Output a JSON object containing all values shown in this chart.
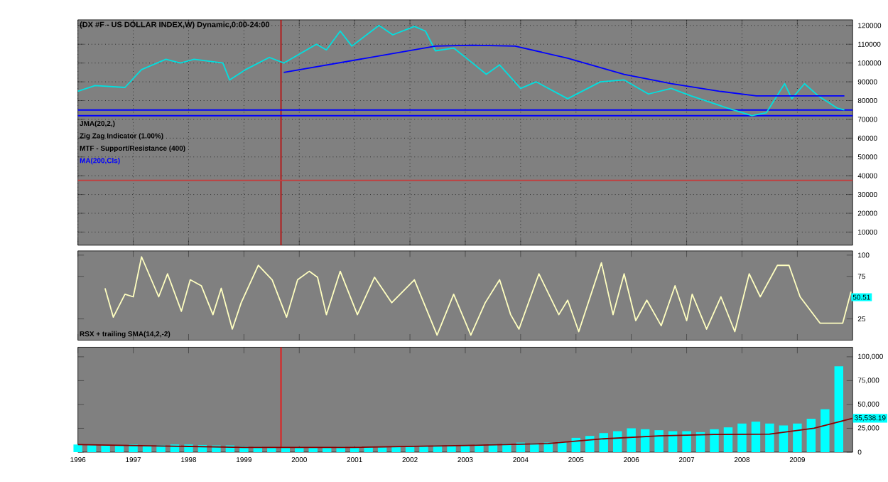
{
  "chart_data": [
    {
      "type": "line",
      "title": "(DX #F - US DOLLAR INDEX,W) Dynamic,0:00-24:00",
      "annotations": [
        "JMA(20,2,)",
        "Zig Zag Indicator (1.00%)",
        "MTF - Support/Resistance (400)"
      ],
      "xlim": [
        1996,
        2010
      ],
      "xticks": [
        1996,
        1997,
        1998,
        1999,
        2000,
        2001,
        2002,
        2003,
        2004,
        2005,
        2006,
        2007,
        2008,
        2009
      ],
      "ylim": [
        3000,
        123000
      ],
      "yticks": [
        10000,
        20000,
        30000,
        40000,
        50000,
        60000,
        70000,
        80000,
        90000,
        100000,
        110000,
        120000
      ],
      "tick_labels": "y",
      "grid": true,
      "marker": "none",
      "line_style": "solid",
      "series": [
        {
          "color": "#00e0e0",
          "x": [
            1996.0,
            1996.31,
            1996.85,
            1997.15,
            1997.59,
            1997.85,
            1998.1,
            1998.62,
            1998.74,
            1999.03,
            1999.46,
            1999.72,
            2000.31,
            2000.49,
            2000.74,
            2000.95,
            2001.44,
            2001.69,
            2002.08,
            2002.28,
            2002.46,
            2002.79,
            2003.13,
            2003.38,
            2003.62,
            2004.0,
            2004.28,
            2004.85,
            2005.44,
            2005.87,
            2006.31,
            2006.72,
            2007.08,
            2007.74,
            2008.18,
            2008.44,
            2008.77,
            2008.9,
            2009.13,
            2009.38,
            2009.72,
            2009.85
          ],
          "values": [
            85000,
            88000,
            87000,
            96500,
            102000,
            100000,
            102000,
            100000,
            91000,
            96500,
            103000,
            100000,
            110000,
            107000,
            117000,
            109000,
            120000,
            115000,
            119500,
            117000,
            106500,
            108000,
            100000,
            94000,
            99000,
            86500,
            90000,
            81000,
            90000,
            91000,
            83500,
            86500,
            82500,
            76000,
            72000,
            73500,
            89000,
            81000,
            89000,
            82500,
            76000,
            75000
          ]
        },
        {
          "name": "MA(200,Cls)",
          "color": "#0000ff",
          "x": [
            1999.72,
            2002.46,
            2003.13,
            2003.9,
            2004.85,
            2005.87,
            2006.72,
            2007.59,
            2008.26,
            2009.03,
            2009.85
          ],
          "values": [
            95000,
            109000,
            109500,
            109000,
            102600,
            94000,
            89000,
            85000,
            82500,
            82500,
            82500
          ]
        }
      ],
      "ref_lines": [
        {
          "axis": "x",
          "value": 1999.67,
          "color": "#c00000"
        },
        {
          "axis": "y",
          "value": 75000,
          "color": "#0000ff"
        },
        {
          "axis": "y",
          "value": 72000,
          "color": "#0000ff"
        },
        {
          "axis": "y",
          "value": 37500,
          "color": "#c04040"
        }
      ]
    },
    {
      "type": "line",
      "annotations": [
        "RSX + trailing SMA(14,2,-2)",
        {
          "text": "50.51",
          "x": 2009.97,
          "y": 50.51
        }
      ],
      "xlim": [
        1996,
        2010
      ],
      "xticks": [
        1996,
        1997,
        1998,
        1999,
        2000,
        2001,
        2002,
        2003,
        2004,
        2005,
        2006,
        2007,
        2008,
        2009
      ],
      "ylim": [
        0,
        105
      ],
      "yticks": [
        25,
        75,
        100
      ],
      "tick_labels": "y",
      "marker": "none",
      "line_style": "solid",
      "series": [
        {
          "color": "#ffffc0",
          "x": [
            1996.49,
            1996.64,
            1996.85,
            1997.0,
            1997.15,
            1997.46,
            1997.62,
            1997.87,
            1998.03,
            1998.23,
            1998.44,
            1998.59,
            1998.79,
            1998.95,
            1999.26,
            1999.51,
            1999.77,
            1999.97,
            2000.18,
            2000.33,
            2000.49,
            2000.74,
            2001.05,
            2001.36,
            2001.67,
            2002.08,
            2002.49,
            2002.79,
            2003.1,
            2003.36,
            2003.62,
            2003.82,
            2003.97,
            2004.33,
            2004.69,
            2004.85,
            2005.05,
            2005.46,
            2005.67,
            2005.87,
            2006.08,
            2006.28,
            2006.54,
            2006.79,
            2007.0,
            2007.1,
            2007.36,
            2007.62,
            2007.87,
            2008.13,
            2008.33,
            2008.64,
            2008.85,
            2009.05,
            2009.41,
            2009.67,
            2009.82,
            2009.97
          ],
          "values": [
            61,
            27,
            54,
            51,
            98,
            51,
            78,
            34,
            71,
            64,
            30,
            61,
            13,
            44,
            88,
            71,
            27,
            71,
            81,
            74,
            30,
            81,
            30,
            74,
            44,
            71,
            6,
            54,
            6,
            44,
            71,
            30,
            13,
            78,
            30,
            47,
            10,
            91,
            30,
            78,
            23,
            47,
            17,
            64,
            23,
            54,
            13,
            51,
            10,
            78,
            51,
            88,
            88,
            51,
            20,
            20,
            20,
            57
          ]
        }
      ]
    },
    {
      "type": "bar",
      "xlim": [
        1996,
        2010
      ],
      "xticks": [
        1996,
        1997,
        1998,
        1999,
        2000,
        2001,
        2002,
        2003,
        2004,
        2005,
        2006,
        2007,
        2008,
        2009
      ],
      "ylim": [
        0,
        110000
      ],
      "yticks": [
        {
          "value": 0,
          "label": "0"
        },
        {
          "value": 25000,
          "label": "25,000"
        },
        {
          "value": 50000,
          "label": "50,000"
        },
        {
          "value": 75000,
          "label": "75,000"
        },
        {
          "value": 100000,
          "label": "100,000"
        }
      ],
      "annotations": [
        {
          "text": "35,538.19",
          "x": 2010,
          "y": 35538
        }
      ],
      "series": [
        {
          "color": "#00ffff",
          "x": [
            1996.0,
            1996.25,
            1996.5,
            1996.75,
            1997.0,
            1997.25,
            1997.5,
            1997.75,
            1998.0,
            1998.25,
            1998.5,
            1998.75,
            1999.0,
            1999.25,
            1999.5,
            1999.75,
            2000.0,
            2000.25,
            2000.5,
            2000.75,
            2001.0,
            2001.25,
            2001.5,
            2001.75,
            2002.0,
            2002.25,
            2002.5,
            2002.75,
            2003.0,
            2003.25,
            2003.5,
            2003.75,
            2004.0,
            2004.25,
            2004.5,
            2004.75,
            2005.0,
            2005.25,
            2005.5,
            2005.75,
            2006.0,
            2006.25,
            2006.5,
            2006.75,
            2007.0,
            2007.25,
            2007.5,
            2007.75,
            2008.0,
            2008.25,
            2008.5,
            2008.75,
            2009.0,
            2009.25,
            2009.5,
            2009.75
          ],
          "values": [
            8000,
            7500,
            7000,
            7500,
            8000,
            7000,
            7500,
            8000,
            8000,
            7500,
            7000,
            7000,
            6000,
            5500,
            5000,
            5000,
            4500,
            4500,
            5000,
            5500,
            5000,
            5500,
            5000,
            5500,
            6000,
            6500,
            7000,
            7000,
            7500,
            8000,
            8500,
            9000,
            10000,
            9500,
            10000,
            11000,
            15000,
            17000,
            20000,
            22000,
            25000,
            24000,
            23000,
            22000,
            22000,
            21000,
            24000,
            26000,
            30000,
            32000,
            30000,
            28000,
            30000,
            35000,
            45000,
            90000
          ]
        },
        {
          "type": "line",
          "color": "#8b0000",
          "x": [
            1996,
            1999,
            2001,
            2003,
            2004.5,
            2005.5,
            2006.5,
            2007.5,
            2008.5,
            2009.3,
            2010
          ],
          "values": [
            8000,
            5000,
            5000,
            7000,
            9000,
            14000,
            17000,
            18500,
            19000,
            25000,
            35538
          ]
        }
      ],
      "ref_lines": [
        {
          "axis": "x",
          "value": 1999.67,
          "color": "#ff0000"
        }
      ]
    }
  ]
}
